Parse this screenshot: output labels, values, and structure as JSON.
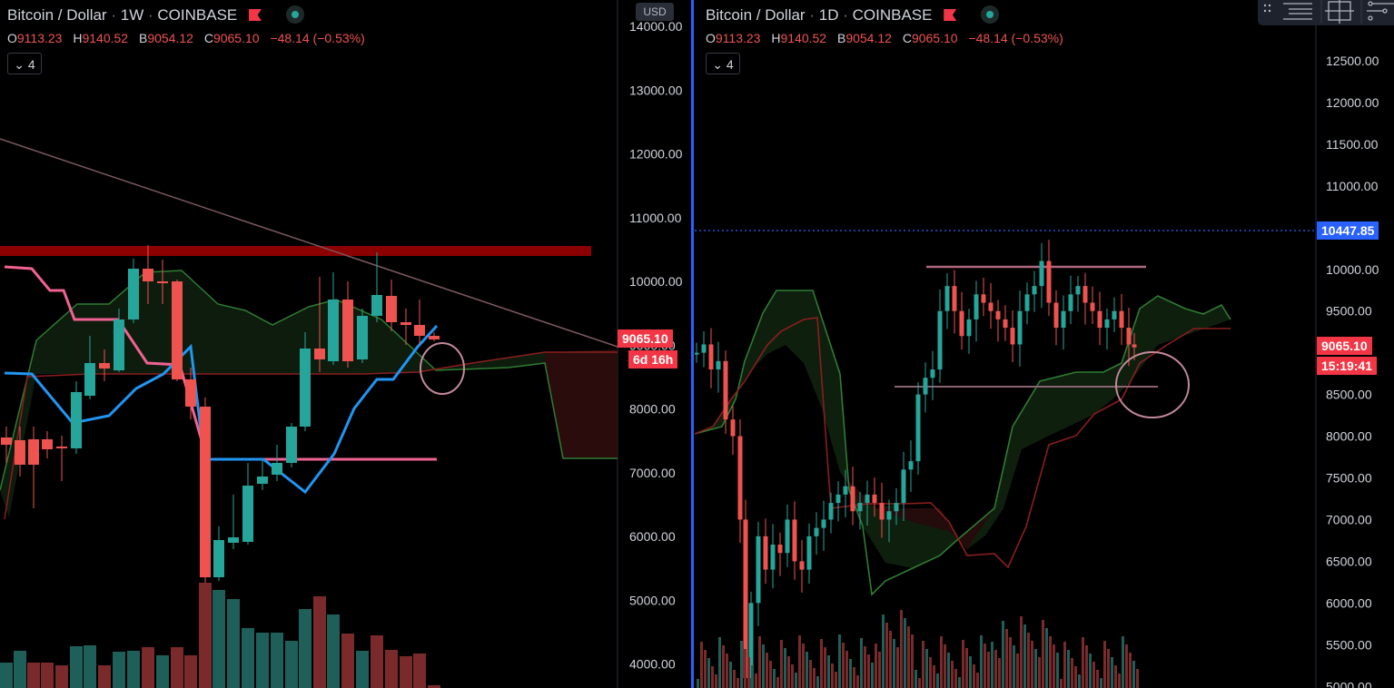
{
  "left_chart": {
    "symbol": "Bitcoin / Dollar",
    "interval": "1W",
    "exchange": "COINBASE",
    "sep1": "·",
    "sep2": "·",
    "ohlc": {
      "o_label": "O",
      "o": "9113.23",
      "h_label": "H",
      "h": "9140.52",
      "l_label": "B",
      "l": "9054.12",
      "c_label": "C",
      "c": "9065.10",
      "change": "−48.14 (−0.53%)"
    },
    "indicator_collapse": "4",
    "currency_button": "USD",
    "price_ticks": [
      "14000.00",
      "13000.00",
      "12000.00",
      "11000.00",
      "10000.00",
      "9000.00",
      "8000.00",
      "7000.00",
      "6000.00",
      "5000.00",
      "4000.00"
    ],
    "price_tag": "9065.10",
    "countdown_tag": "6d 16h"
  },
  "right_chart": {
    "symbol": "Bitcoin / Dollar",
    "interval": "1D",
    "exchange": "COINBASE",
    "sep1": "·",
    "sep2": "·",
    "ohlc": {
      "o_label": "O",
      "o": "9113.23",
      "h_label": "H",
      "h": "9140.52",
      "l_label": "B",
      "l": "9054.12",
      "c_label": "C",
      "c": "9065.10",
      "change": "−48.14 (−0.53%)"
    },
    "indicator_collapse": "4",
    "price_ticks": [
      "12500.00",
      "12000.00",
      "11500.00",
      "11000.00",
      "10000.00",
      "9500.00",
      "8500.00",
      "8000.00",
      "7500.00",
      "7000.00",
      "6500.00",
      "6000.00",
      "5500.00",
      "5000.00"
    ],
    "crosshair_tag": "10447.85",
    "price_tag": "9065.10",
    "countdown_tag": "15:19:41"
  },
  "colors": {
    "up": "#26a69a",
    "down": "#ef5350",
    "tag_red": "#f23645",
    "crosshair": "#2962ff",
    "pink": "#f06292",
    "blue": "#2196f3",
    "cloud_green": "#2e7d32",
    "cloud_red": "#8b1e1e",
    "resistance": "#8b0000"
  },
  "icons": [
    "flag-icon",
    "status-dot-icon",
    "chevron-down-icon",
    "drag-handle-icon",
    "tool-lines-icon",
    "tool-crosshair-icon",
    "tool-nodes-icon"
  ]
}
